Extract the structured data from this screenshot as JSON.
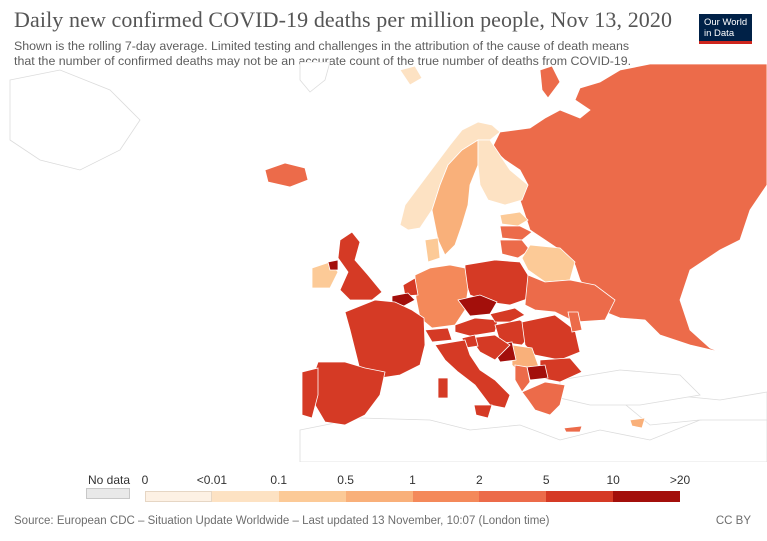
{
  "header": {
    "title": "Daily new confirmed COVID-19 deaths per million people, Nov 13, 2020",
    "subtitle_line1": "Shown is the rolling 7-day average. Limited testing and challenges in the attribution of the cause of death means",
    "subtitle_line2": "that the number of confirmed deaths may not be an accurate count of the true number of deaths from COVID-19."
  },
  "logo": {
    "line1": "Our World",
    "line2": "in Data"
  },
  "legend": {
    "no_data_label": "No data",
    "tick_labels": [
      "0",
      "<0.01",
      "0.1",
      "0.5",
      "1",
      "2",
      "5",
      "10",
      ">20"
    ],
    "colors": [
      "#fdf1e4",
      "#fde2c3",
      "#fcca97",
      "#f9b07a",
      "#f4895a",
      "#ec6b4a",
      "#d53a25",
      "#a30f0b"
    ]
  },
  "footer": {
    "source": "Source: European CDC – Situation Update Worldwide – Last updated 13 November, 10:07 (London time)",
    "license": "CC BY"
  },
  "colors": {
    "no_data": "#e9e9e9",
    "land_outline": "#d9d9d9",
    "brand": "#002147",
    "brand_accent": "#ce261e"
  }
}
